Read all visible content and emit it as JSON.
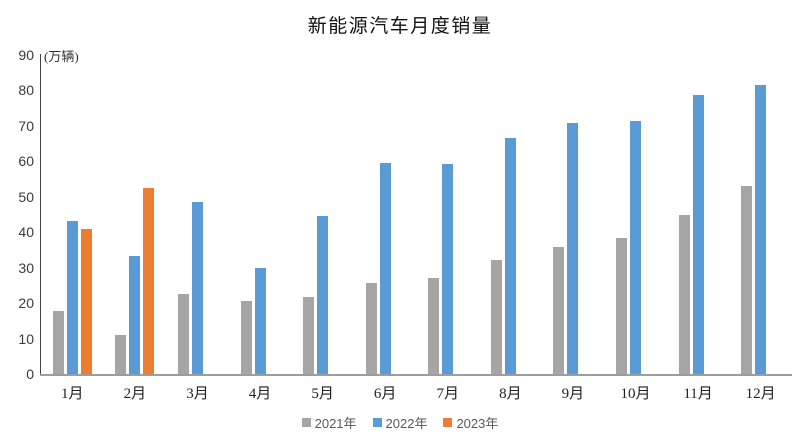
{
  "chart_data": {
    "type": "bar",
    "title": "新能源汽车月度销量",
    "ylabel": "(万辆)",
    "xlabel": "",
    "categories": [
      "1月",
      "2月",
      "3月",
      "4月",
      "5月",
      "6月",
      "7月",
      "8月",
      "9月",
      "10月",
      "11月",
      "12月"
    ],
    "series": [
      {
        "name": "2021年",
        "color": "#A5A5A5",
        "values": [
          17.9,
          11.0,
          22.6,
          20.6,
          21.7,
          25.6,
          27.1,
          32.1,
          35.7,
          38.3,
          45.0,
          53.1
        ]
      },
      {
        "name": "2022年",
        "color": "#5B9BD5",
        "values": [
          43.1,
          33.4,
          48.4,
          29.9,
          44.7,
          59.6,
          59.3,
          66.6,
          70.8,
          71.4,
          78.6,
          81.4
        ]
      },
      {
        "name": "2023年",
        "color": "#ED7D31",
        "values": [
          40.8,
          52.5,
          null,
          null,
          null,
          null,
          null,
          null,
          null,
          null,
          null,
          null
        ]
      }
    ],
    "ylim": [
      0,
      90
    ],
    "yticks": [
      0,
      10,
      20,
      30,
      40,
      50,
      60,
      70,
      80,
      90
    ],
    "grid": false,
    "legend_position": "bottom",
    "axis_colors": {
      "y_axis_line": "#444444",
      "x_axis_line": "#9d9d9d"
    }
  }
}
